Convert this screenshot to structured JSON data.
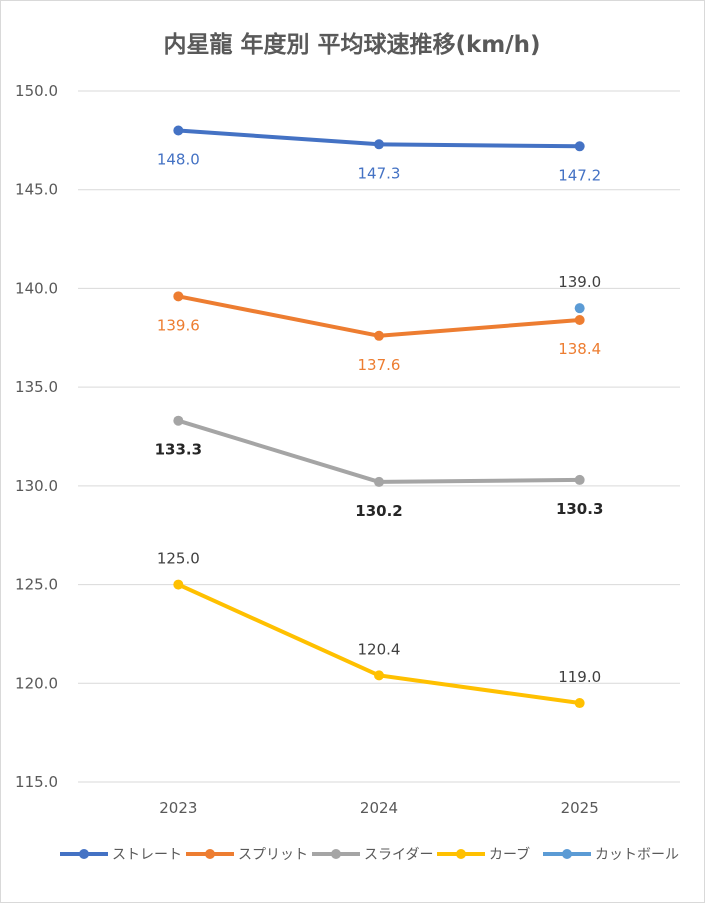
{
  "chart_data": {
    "type": "line",
    "title": "内星龍 年度別 平均球速推移(km/h)",
    "categories": [
      "2023",
      "2024",
      "2025"
    ],
    "ylim": [
      115,
      150
    ],
    "yticks": [
      115,
      120,
      125,
      130,
      135,
      140,
      145,
      150
    ],
    "ytick_labels": [
      "115.0",
      "120.0",
      "125.0",
      "130.0",
      "135.0",
      "140.0",
      "145.0",
      "150.0"
    ],
    "grid": true,
    "legend_position": "bottom",
    "series": [
      {
        "name": "ストレート",
        "color": "#4472c4",
        "values": [
          148.0,
          147.3,
          147.2
        ],
        "labels": [
          "148.0",
          "147.3",
          "147.2"
        ],
        "label_color": "#4472c4",
        "label_pos": "below",
        "label_bold": false
      },
      {
        "name": "スプリット",
        "color": "#ed7d31",
        "values": [
          139.6,
          137.6,
          138.4
        ],
        "labels": [
          "139.6",
          "137.6",
          "138.4"
        ],
        "label_color": "#ed7d31",
        "label_pos": "below",
        "label_bold": false
      },
      {
        "name": "スライダー",
        "color": "#a5a5a5",
        "values": [
          133.3,
          130.2,
          130.3
        ],
        "labels": [
          "133.3",
          "130.2",
          "130.3"
        ],
        "label_color": "#262626",
        "label_pos": "below",
        "label_bold": true
      },
      {
        "name": "カーブ",
        "color": "#ffc000",
        "values": [
          125.0,
          120.4,
          119.0
        ],
        "labels": [
          "125.0",
          "120.4",
          "119.0"
        ],
        "label_color": "#404040",
        "label_pos": "above",
        "label_bold": false
      },
      {
        "name": "カットボール",
        "color": "#5b9bd5",
        "values": [
          null,
          null,
          139.0
        ],
        "labels": [
          null,
          null,
          "139.0"
        ],
        "label_color": "#404040",
        "label_pos": "above",
        "label_bold": false
      }
    ]
  }
}
